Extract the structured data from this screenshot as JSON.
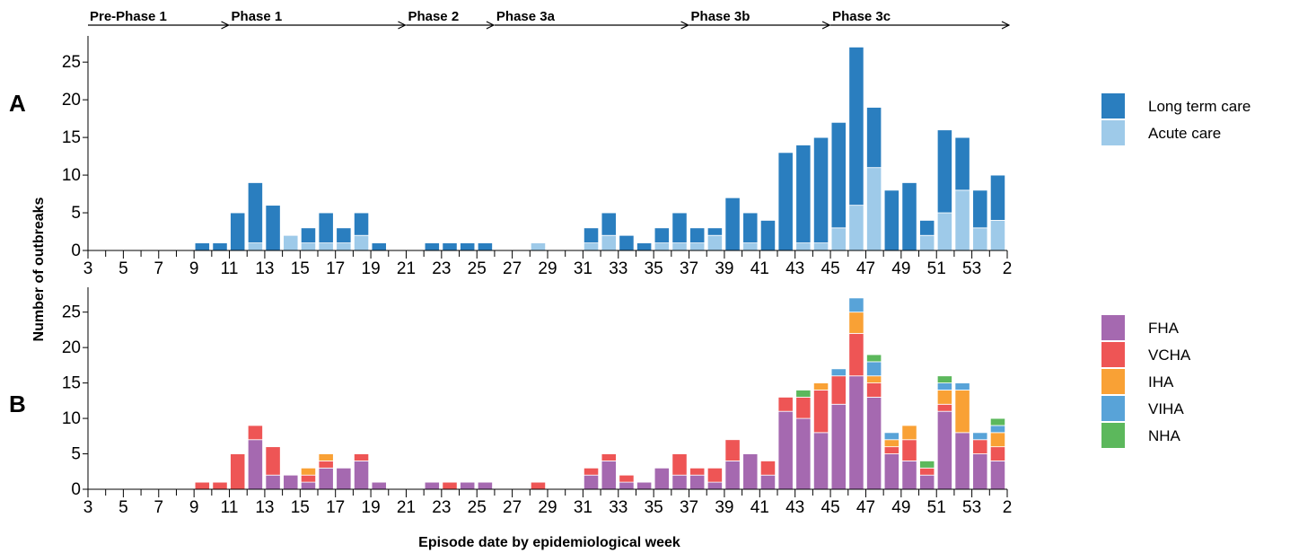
{
  "figure": {
    "ylabel": "Number of outbreaks",
    "xlabel": "Episode date by epidemiological week",
    "phases": [
      "Pre-Phase 1",
      "Phase 1",
      "Phase 2",
      "Phase 3a",
      "Phase 3b",
      "Phase 3c"
    ]
  },
  "chart_data": [
    {
      "type": "bar",
      "stacked": true,
      "panel": "A",
      "categories": [
        "3",
        "4",
        "5",
        "6",
        "7",
        "8",
        "9",
        "10",
        "11",
        "12",
        "13",
        "14",
        "15",
        "16",
        "17",
        "18",
        "19",
        "20",
        "21",
        "22",
        "23",
        "24",
        "25",
        "26",
        "27",
        "28",
        "29",
        "30",
        "31",
        "32",
        "33",
        "34",
        "35",
        "36",
        "37",
        "38",
        "39",
        "40",
        "41",
        "42",
        "43",
        "44",
        "45",
        "46",
        "47",
        "48",
        "49",
        "50",
        "51",
        "52",
        "53",
        "1",
        "2"
      ],
      "x_tick_labels": [
        "3",
        "5",
        "7",
        "9",
        "11",
        "13",
        "15",
        "17",
        "19",
        "21",
        "23",
        "25",
        "27",
        "29",
        "31",
        "33",
        "35",
        "37",
        "39",
        "41",
        "43",
        "45",
        "47",
        "49",
        "51",
        "53",
        "2"
      ],
      "ylim": [
        0,
        28
      ],
      "y_ticks": [
        0,
        5,
        10,
        15,
        20,
        25
      ],
      "series": [
        {
          "name": "Acute care",
          "color": "#9ecae9",
          "values": [
            0,
            0,
            0,
            0,
            0,
            0,
            0,
            0,
            0,
            1,
            0,
            2,
            1,
            1,
            1,
            2,
            0,
            0,
            0,
            0,
            0,
            0,
            0,
            0,
            0,
            1,
            0,
            0,
            1,
            2,
            0,
            0,
            1,
            1,
            1,
            2,
            0,
            1,
            0,
            0,
            1,
            1,
            3,
            6,
            11,
            0,
            0,
            2,
            5,
            8,
            3,
            4,
            0
          ]
        },
        {
          "name": "Long term care",
          "color": "#2a7ebf",
          "values": [
            0,
            0,
            0,
            0,
            0,
            0,
            1,
            1,
            5,
            8,
            6,
            0,
            2,
            4,
            2,
            3,
            1,
            0,
            0,
            1,
            1,
            1,
            1,
            0,
            0,
            0,
            0,
            0,
            2,
            3,
            2,
            1,
            2,
            4,
            2,
            1,
            7,
            4,
            4,
            13,
            13,
            14,
            14,
            21,
            8,
            8,
            9,
            2,
            11,
            7,
            5,
            6,
            0
          ]
        }
      ],
      "legend": {
        "position": "right",
        "entries": [
          "Long term care",
          "Acute care"
        ]
      }
    },
    {
      "type": "bar",
      "stacked": true,
      "panel": "B",
      "categories": [
        "3",
        "4",
        "5",
        "6",
        "7",
        "8",
        "9",
        "10",
        "11",
        "12",
        "13",
        "14",
        "15",
        "16",
        "17",
        "18",
        "19",
        "20",
        "21",
        "22",
        "23",
        "24",
        "25",
        "26",
        "27",
        "28",
        "29",
        "30",
        "31",
        "32",
        "33",
        "34",
        "35",
        "36",
        "37",
        "38",
        "39",
        "40",
        "41",
        "42",
        "43",
        "44",
        "45",
        "46",
        "47",
        "48",
        "49",
        "50",
        "51",
        "52",
        "53",
        "1",
        "2"
      ],
      "x_tick_labels": [
        "3",
        "5",
        "7",
        "9",
        "11",
        "13",
        "15",
        "17",
        "19",
        "21",
        "23",
        "25",
        "27",
        "29",
        "31",
        "33",
        "35",
        "37",
        "39",
        "41",
        "43",
        "45",
        "47",
        "49",
        "51",
        "53",
        "2"
      ],
      "ylim": [
        0,
        28
      ],
      "y_ticks": [
        0,
        5,
        10,
        15,
        20,
        25
      ],
      "series": [
        {
          "name": "FHA",
          "color": "#a569b0",
          "values": [
            0,
            0,
            0,
            0,
            0,
            0,
            0,
            0,
            0,
            7,
            2,
            2,
            1,
            3,
            3,
            4,
            1,
            0,
            0,
            1,
            0,
            1,
            1,
            0,
            0,
            0,
            0,
            0,
            2,
            4,
            1,
            1,
            3,
            2,
            2,
            1,
            4,
            5,
            2,
            11,
            10,
            8,
            12,
            16,
            13,
            5,
            4,
            2,
            11,
            8,
            5,
            4,
            0
          ]
        },
        {
          "name": "VCHA",
          "color": "#ee5555",
          "values": [
            0,
            0,
            0,
            0,
            0,
            0,
            1,
            1,
            5,
            2,
            4,
            0,
            1,
            1,
            0,
            1,
            0,
            0,
            0,
            0,
            1,
            0,
            0,
            0,
            0,
            1,
            0,
            0,
            1,
            1,
            1,
            0,
            0,
            3,
            1,
            2,
            3,
            0,
            2,
            2,
            3,
            6,
            4,
            6,
            2,
            1,
            3,
            1,
            1,
            0,
            2,
            2,
            0
          ]
        },
        {
          "name": "IHA",
          "color": "#f9a135",
          "values": [
            0,
            0,
            0,
            0,
            0,
            0,
            0,
            0,
            0,
            0,
            0,
            0,
            1,
            1,
            0,
            0,
            0,
            0,
            0,
            0,
            0,
            0,
            0,
            0,
            0,
            0,
            0,
            0,
            0,
            0,
            0,
            0,
            0,
            0,
            0,
            0,
            0,
            0,
            0,
            0,
            0,
            1,
            0,
            3,
            1,
            1,
            2,
            0,
            2,
            6,
            0,
            2,
            0
          ]
        },
        {
          "name": "VIHA",
          "color": "#58a3d8",
          "values": [
            0,
            0,
            0,
            0,
            0,
            0,
            0,
            0,
            0,
            0,
            0,
            0,
            0,
            0,
            0,
            0,
            0,
            0,
            0,
            0,
            0,
            0,
            0,
            0,
            0,
            0,
            0,
            0,
            0,
            0,
            0,
            0,
            0,
            0,
            0,
            0,
            0,
            0,
            0,
            0,
            0,
            0,
            1,
            2,
            2,
            1,
            0,
            0,
            1,
            1,
            1,
            1,
            0
          ]
        },
        {
          "name": "NHA",
          "color": "#5cb85c",
          "values": [
            0,
            0,
            0,
            0,
            0,
            0,
            0,
            0,
            0,
            0,
            0,
            0,
            0,
            0,
            0,
            0,
            0,
            0,
            0,
            0,
            0,
            0,
            0,
            0,
            0,
            0,
            0,
            0,
            0,
            0,
            0,
            0,
            0,
            0,
            0,
            0,
            0,
            0,
            0,
            0,
            1,
            0,
            0,
            0,
            1,
            0,
            0,
            1,
            1,
            0,
            0,
            1,
            0
          ]
        }
      ],
      "legend": {
        "position": "right",
        "entries": [
          "FHA",
          "VCHA",
          "IHA",
          "VIHA",
          "NHA"
        ]
      }
    }
  ]
}
